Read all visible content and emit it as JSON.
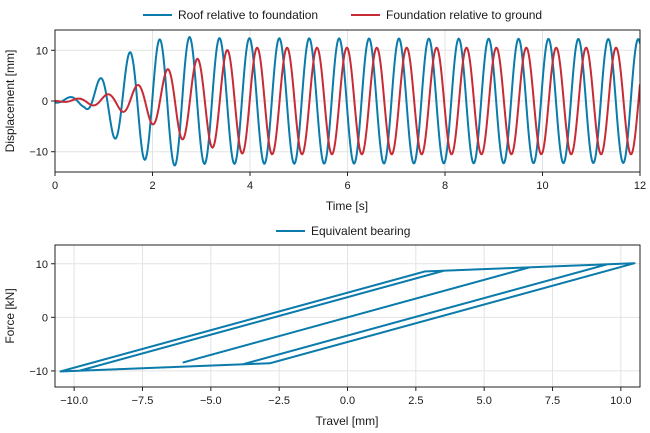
{
  "colors": {
    "roof": "#0a7bab",
    "foundation": "#c62b36",
    "bearing": "#0a7bab"
  },
  "chart_data": [
    {
      "type": "line",
      "title": "",
      "xlabel": "Time [s]",
      "ylabel": "Displacement [mm]",
      "xlim": [
        0,
        12
      ],
      "ylim": [
        -14,
        14
      ],
      "xticks": [
        0,
        2,
        4,
        6,
        8,
        10,
        12
      ],
      "xtick_labels": [
        "0",
        "2",
        "4",
        "6",
        "8",
        "10",
        "12"
      ],
      "yticks": [
        -10,
        0,
        10
      ],
      "ytick_labels": [
        "−10",
        "0",
        "10"
      ],
      "grid": true,
      "legend": "above",
      "series": [
        {
          "name": "Roof relative to foundation",
          "color_key": "roof",
          "model": {
            "frequency_hz": 1.63,
            "amplitude_envelope": [
              [
                0,
                0.3
              ],
              [
                0.6,
                1.2
              ],
              [
                1.2,
                7.2
              ],
              [
                1.8,
                11.5
              ],
              [
                2.5,
                12.8
              ],
              [
                3,
                12.4
              ],
              [
                12,
                12.2
              ]
            ],
            "phase_rad": -1.57
          }
        },
        {
          "name": "Foundation relative to ground",
          "color_key": "foundation",
          "model": {
            "frequency_hz": 1.63,
            "amplitude_envelope": [
              [
                0,
                0
              ],
              [
                0.6,
                0.6
              ],
              [
                1.2,
                1.5
              ],
              [
                1.8,
                3.5
              ],
              [
                2.5,
                7.3
              ],
              [
                3,
                8.5
              ],
              [
                3.5,
                10
              ],
              [
                4,
                10.5
              ],
              [
                12,
                10.5
              ]
            ],
            "phase_rad": -3.2
          }
        }
      ]
    },
    {
      "type": "line",
      "title": "",
      "xlabel": "Travel [mm]",
      "ylabel": "Force [kN]",
      "xlim": [
        -10.7,
        10.7
      ],
      "ylim": [
        -13,
        13.5
      ],
      "xticks": [
        -10,
        -7.5,
        -5,
        -2.5,
        0,
        2.5,
        5,
        7.5,
        10
      ],
      "xtick_labels": [
        "−10.0",
        "−7.5",
        "−5.0",
        "−2.5",
        "0.0",
        "2.5",
        "5.0",
        "7.5",
        "10.0"
      ],
      "yticks": [
        -10,
        0,
        10
      ],
      "ytick_labels": [
        "−10",
        "0",
        "10"
      ],
      "grid": true,
      "legend": "above",
      "series": [
        {
          "name": "Equivalent bearing",
          "color_key": "bearing",
          "model": {
            "elastic_stiffness_kn_per_mm": 1.4,
            "yield_force_kn": 8.0,
            "post_yield_stiffness_kn_per_mm": 0.2,
            "travel_amplitude_mm": 10.5,
            "final_point": [
              1.1,
              8.6
            ]
          }
        }
      ]
    }
  ]
}
